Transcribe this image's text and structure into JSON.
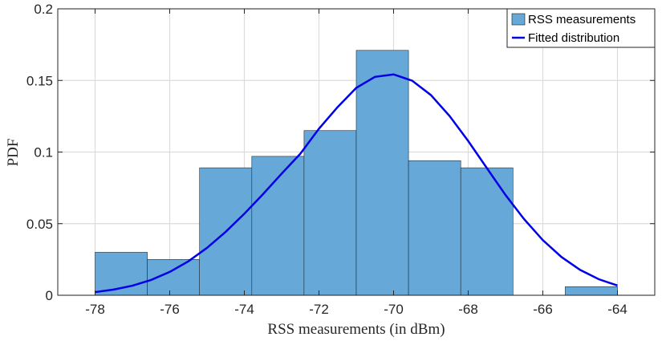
{
  "chart_data": {
    "type": "bar",
    "subtype": "histogram-with-fitted-curve",
    "title": "",
    "xlabel": "RSS measurements (in dBm)",
    "ylabel": "PDF",
    "xlim": [
      -79,
      -63
    ],
    "ylim": [
      0,
      0.2
    ],
    "xticks": [
      -78,
      -76,
      -74,
      -72,
      -70,
      -68,
      -66,
      -64
    ],
    "xtick_labels": [
      "-78",
      "-76",
      "-74",
      "-72",
      "-70",
      "-68",
      "-66",
      "-64"
    ],
    "yticks": [
      0,
      0.05,
      0.1,
      0.15,
      0.2
    ],
    "ytick_labels": [
      "0",
      "0.05",
      "0.1",
      "0.15",
      "0.2"
    ],
    "grid": true,
    "legend_position": "top-right",
    "series": [
      {
        "name": "RSS measurements",
        "kind": "histogram",
        "color": "#66a8d8",
        "bins": [
          {
            "x0": -78.0,
            "x1": -76.6,
            "value": 0.03
          },
          {
            "x0": -76.6,
            "x1": -75.2,
            "value": 0.025
          },
          {
            "x0": -75.2,
            "x1": -73.8,
            "value": 0.089
          },
          {
            "x0": -73.8,
            "x1": -72.4,
            "value": 0.097
          },
          {
            "x0": -72.4,
            "x1": -71.0,
            "value": 0.115
          },
          {
            "x0": -71.0,
            "x1": -69.6,
            "value": 0.171
          },
          {
            "x0": -69.6,
            "x1": -68.2,
            "value": 0.094
          },
          {
            "x0": -68.2,
            "x1": -66.8,
            "value": 0.089
          },
          {
            "x0": -66.8,
            "x1": -65.4,
            "value": 0.0
          },
          {
            "x0": -65.4,
            "x1": -64.0,
            "value": 0.006
          }
        ]
      },
      {
        "name": "Fitted distribution",
        "kind": "line",
        "color": "#0000e6",
        "x": [
          -78,
          -77.5,
          -77,
          -76.5,
          -76,
          -75.5,
          -75,
          -74.5,
          -74,
          -73.5,
          -73,
          -72.5,
          -72,
          -71.5,
          -71,
          -70.5,
          -70,
          -69.5,
          -69,
          -68.5,
          -68,
          -67.5,
          -67,
          -66.5,
          -66,
          -65.5,
          -65,
          -64.5,
          -64
        ],
        "y": [
          0.0022,
          0.004,
          0.0067,
          0.0107,
          0.0163,
          0.0237,
          0.0331,
          0.0443,
          0.0569,
          0.0706,
          0.0849,
          0.0988,
          0.1163,
          0.1314,
          0.1448,
          0.1525,
          0.1542,
          0.1498,
          0.1398,
          0.1252,
          0.1077,
          0.0888,
          0.07,
          0.0531,
          0.0385,
          0.0267,
          0.0177,
          0.0112,
          0.0068
        ]
      }
    ]
  }
}
